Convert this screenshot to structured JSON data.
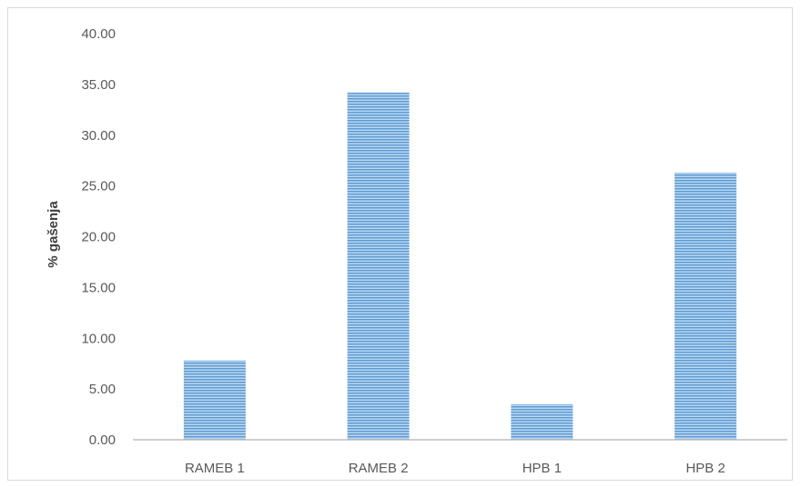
{
  "chart_data": {
    "type": "bar",
    "title": "",
    "xlabel": "",
    "ylabel": "% gašenja",
    "categories": [
      "RAMEB 1",
      "RAMEB 2",
      "HPB 1",
      "HPB 2"
    ],
    "values": [
      7.8,
      34.2,
      3.5,
      26.3
    ],
    "ylim": [
      0,
      40
    ],
    "y_ticks": [
      "0.00",
      "5.00",
      "10.00",
      "15.00",
      "20.00",
      "25.00",
      "30.00",
      "35.00",
      "40.00"
    ],
    "grid": false,
    "legend": "none",
    "bar_color": "#5b9bd5",
    "bar_pattern": "horizontal-stripes"
  }
}
